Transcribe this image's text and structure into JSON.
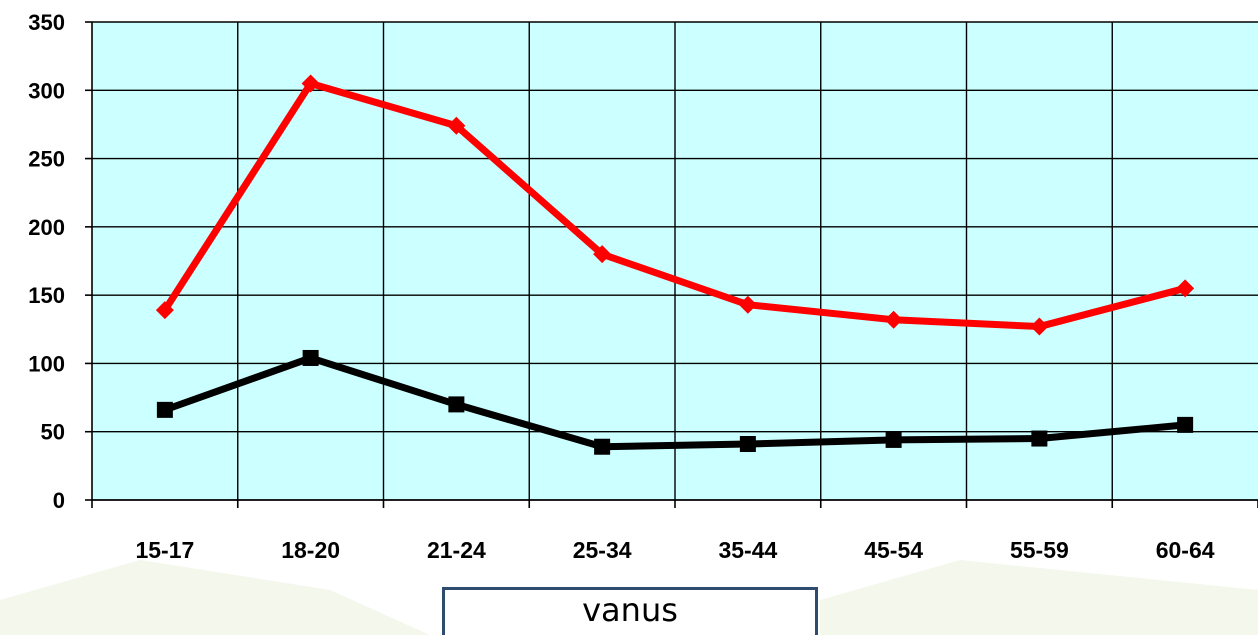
{
  "chart_data": {
    "type": "line",
    "categories": [
      "15-17",
      "18-20",
      "21-24",
      "25-34",
      "35-44",
      "45-54",
      "55-59",
      "60-64"
    ],
    "series": [
      {
        "values": [
          139,
          305,
          274,
          180,
          143,
          132,
          127,
          155
        ],
        "color": "#ff0000",
        "marker": "diamond"
      },
      {
        "values": [
          66,
          104,
          70,
          39,
          41,
          44,
          45,
          55
        ],
        "color": "#000000",
        "marker": "square"
      }
    ],
    "title": "",
    "xlabel": "vanus",
    "ylabel": "",
    "ylim": [
      0,
      350
    ],
    "yticks": [
      "0",
      "50",
      "100",
      "150",
      "200",
      "250",
      "300",
      "350"
    ],
    "grid": true,
    "plot_background": "#ccffff"
  }
}
